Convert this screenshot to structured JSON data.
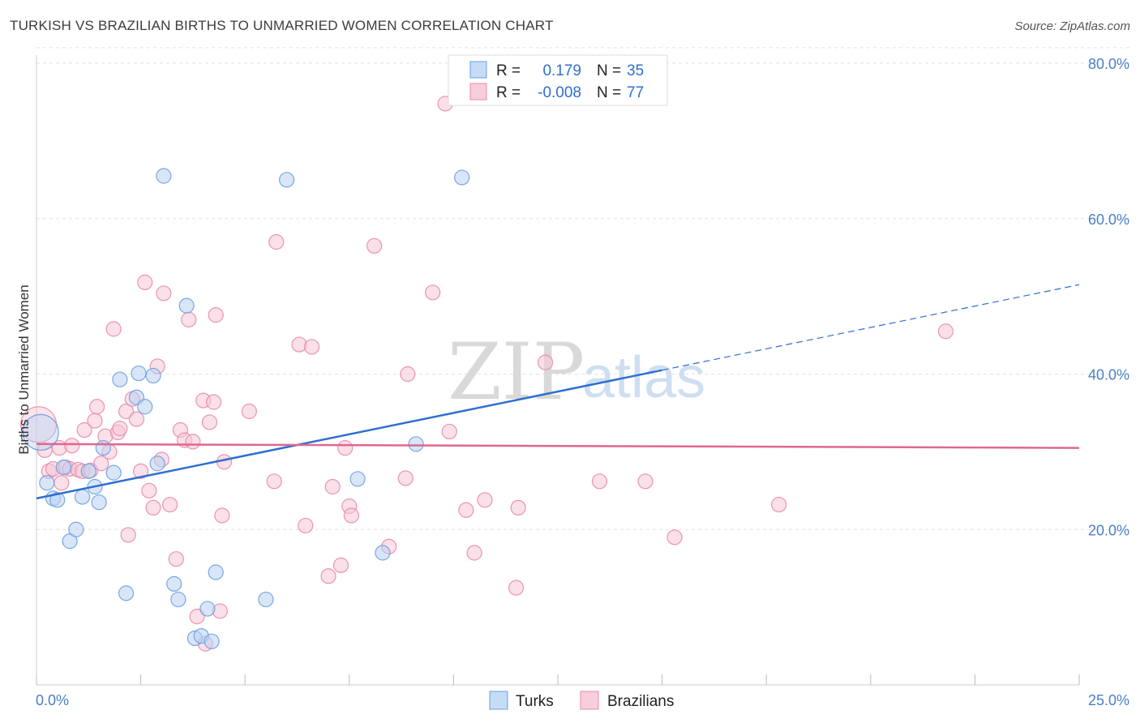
{
  "header": {
    "title": "TURKISH VS BRAZILIAN BIRTHS TO UNMARRIED WOMEN CORRELATION CHART",
    "source": "Source: ZipAtlas.com"
  },
  "watermark": {
    "zip": "ZIP",
    "atlas": "atlas"
  },
  "legend": {
    "rows": [
      {
        "r_label": "R =",
        "r_value": "0.179",
        "n_label": "N =",
        "n_value": "35",
        "color": "#6a9ee0"
      },
      {
        "r_label": "R =",
        "r_value": "-0.008",
        "n_label": "N =",
        "n_value": "77",
        "color": "#e88aa8"
      }
    ],
    "bottom": [
      {
        "label": "Turks"
      },
      {
        "label": "Brazilians"
      }
    ]
  },
  "chart_data": {
    "type": "scatter",
    "title": "TURKISH VS BRAZILIAN BIRTHS TO UNMARRIED WOMEN CORRELATION CHART",
    "xlabel": "",
    "ylabel": "Births to Unmarried Women",
    "xlim": [
      0,
      25
    ],
    "ylim": [
      0,
      82
    ],
    "x_tick_labels": [
      "0.0%",
      "25.0%"
    ],
    "y_ticks": [
      20,
      40,
      60,
      80
    ],
    "y_tick_labels": [
      "20.0%",
      "40.0%",
      "60.0%",
      "80.0%"
    ],
    "series": [
      {
        "name": "Turks",
        "color": "#6a9ee0",
        "fill": "#b9d2f3",
        "trend": {
          "x0": 0.0,
          "y0": 24.0,
          "x1": 15.0,
          "y1": 40.5,
          "dash_to_x": 25.0,
          "dash_to_y": 51.5
        },
        "points": [
          {
            "x": 0.1,
            "y": 32.5,
            "big": true
          },
          {
            "x": 0.25,
            "y": 26.0
          },
          {
            "x": 0.4,
            "y": 24.0
          },
          {
            "x": 0.5,
            "y": 23.8
          },
          {
            "x": 0.65,
            "y": 28.0
          },
          {
            "x": 0.8,
            "y": 18.5
          },
          {
            "x": 0.95,
            "y": 20.0
          },
          {
            "x": 1.1,
            "y": 24.2
          },
          {
            "x": 1.25,
            "y": 27.5
          },
          {
            "x": 1.4,
            "y": 25.5
          },
          {
            "x": 1.5,
            "y": 23.5
          },
          {
            "x": 1.6,
            "y": 30.5
          },
          {
            "x": 1.85,
            "y": 27.3
          },
          {
            "x": 2.0,
            "y": 39.3
          },
          {
            "x": 2.15,
            "y": 11.8
          },
          {
            "x": 2.4,
            "y": 37.0
          },
          {
            "x": 2.45,
            "y": 40.1
          },
          {
            "x": 2.6,
            "y": 35.8
          },
          {
            "x": 2.8,
            "y": 39.8
          },
          {
            "x": 2.9,
            "y": 28.5
          },
          {
            "x": 3.05,
            "y": 65.5
          },
          {
            "x": 3.3,
            "y": 13.0
          },
          {
            "x": 3.4,
            "y": 11.0
          },
          {
            "x": 3.6,
            "y": 48.8
          },
          {
            "x": 3.8,
            "y": 6.0
          },
          {
            "x": 3.95,
            "y": 6.3
          },
          {
            "x": 4.1,
            "y": 9.8
          },
          {
            "x": 4.2,
            "y": 5.6
          },
          {
            "x": 4.3,
            "y": 14.5
          },
          {
            "x": 5.5,
            "y": 11.0
          },
          {
            "x": 6.0,
            "y": 65.0
          },
          {
            "x": 7.7,
            "y": 26.5
          },
          {
            "x": 8.3,
            "y": 17.0
          },
          {
            "x": 9.1,
            "y": 31.0
          },
          {
            "x": 10.2,
            "y": 65.3
          }
        ]
      },
      {
        "name": "Brazilians",
        "color": "#e88aa8",
        "fill": "#f6c6d6",
        "trend": {
          "x0": 0.0,
          "y0": 31.0,
          "x1": 25.0,
          "y1": 30.5
        },
        "points": [
          {
            "x": 0.05,
            "y": 33.5,
            "big": true
          },
          {
            "x": 0.2,
            "y": 30.2
          },
          {
            "x": 0.3,
            "y": 27.5
          },
          {
            "x": 0.4,
            "y": 27.8
          },
          {
            "x": 0.55,
            "y": 30.5
          },
          {
            "x": 0.6,
            "y": 26.0
          },
          {
            "x": 0.7,
            "y": 28.0
          },
          {
            "x": 0.8,
            "y": 27.8
          },
          {
            "x": 0.85,
            "y": 30.8
          },
          {
            "x": 1.0,
            "y": 27.7
          },
          {
            "x": 1.1,
            "y": 27.5
          },
          {
            "x": 1.15,
            "y": 32.8
          },
          {
            "x": 1.3,
            "y": 27.6
          },
          {
            "x": 1.4,
            "y": 34.0
          },
          {
            "x": 1.45,
            "y": 35.8
          },
          {
            "x": 1.55,
            "y": 28.5
          },
          {
            "x": 1.65,
            "y": 32.0
          },
          {
            "x": 1.75,
            "y": 30.0
          },
          {
            "x": 1.85,
            "y": 45.8
          },
          {
            "x": 1.95,
            "y": 32.5
          },
          {
            "x": 2.0,
            "y": 33.0
          },
          {
            "x": 2.15,
            "y": 35.2
          },
          {
            "x": 2.2,
            "y": 19.3
          },
          {
            "x": 2.3,
            "y": 36.8
          },
          {
            "x": 2.4,
            "y": 34.2
          },
          {
            "x": 2.5,
            "y": 27.5
          },
          {
            "x": 2.6,
            "y": 51.8
          },
          {
            "x": 2.7,
            "y": 25.0
          },
          {
            "x": 2.8,
            "y": 22.8
          },
          {
            "x": 2.9,
            "y": 41.0
          },
          {
            "x": 3.0,
            "y": 29.0
          },
          {
            "x": 3.05,
            "y": 50.4
          },
          {
            "x": 3.2,
            "y": 23.2
          },
          {
            "x": 3.35,
            "y": 16.2
          },
          {
            "x": 3.45,
            "y": 32.8
          },
          {
            "x": 3.55,
            "y": 31.5
          },
          {
            "x": 3.65,
            "y": 47.0
          },
          {
            "x": 3.75,
            "y": 31.3
          },
          {
            "x": 3.85,
            "y": 8.8
          },
          {
            "x": 4.0,
            "y": 36.6
          },
          {
            "x": 4.05,
            "y": 5.3
          },
          {
            "x": 4.15,
            "y": 33.8
          },
          {
            "x": 4.25,
            "y": 36.4
          },
          {
            "x": 4.3,
            "y": 47.6
          },
          {
            "x": 4.4,
            "y": 9.5
          },
          {
            "x": 4.45,
            "y": 21.8
          },
          {
            "x": 4.5,
            "y": 28.7
          },
          {
            "x": 5.1,
            "y": 35.2
          },
          {
            "x": 5.7,
            "y": 26.2
          },
          {
            "x": 5.75,
            "y": 57.0
          },
          {
            "x": 6.3,
            "y": 43.8
          },
          {
            "x": 6.45,
            "y": 20.5
          },
          {
            "x": 6.6,
            "y": 43.5
          },
          {
            "x": 7.0,
            "y": 14.0
          },
          {
            "x": 7.1,
            "y": 25.5
          },
          {
            "x": 7.3,
            "y": 15.4
          },
          {
            "x": 7.4,
            "y": 30.5
          },
          {
            "x": 7.5,
            "y": 23.0
          },
          {
            "x": 7.55,
            "y": 21.8
          },
          {
            "x": 8.1,
            "y": 56.5
          },
          {
            "x": 8.45,
            "y": 17.8
          },
          {
            "x": 8.85,
            "y": 26.6
          },
          {
            "x": 8.9,
            "y": 40.0
          },
          {
            "x": 9.5,
            "y": 50.5
          },
          {
            "x": 9.8,
            "y": 74.8
          },
          {
            "x": 9.9,
            "y": 32.6
          },
          {
            "x": 10.3,
            "y": 22.5
          },
          {
            "x": 10.5,
            "y": 17.0
          },
          {
            "x": 10.75,
            "y": 23.8
          },
          {
            "x": 11.5,
            "y": 12.5
          },
          {
            "x": 11.55,
            "y": 22.8
          },
          {
            "x": 12.2,
            "y": 41.5
          },
          {
            "x": 13.5,
            "y": 26.2
          },
          {
            "x": 14.6,
            "y": 26.2
          },
          {
            "x": 15.3,
            "y": 19.0
          },
          {
            "x": 17.8,
            "y": 23.2
          },
          {
            "x": 21.8,
            "y": 45.5
          }
        ]
      }
    ]
  }
}
